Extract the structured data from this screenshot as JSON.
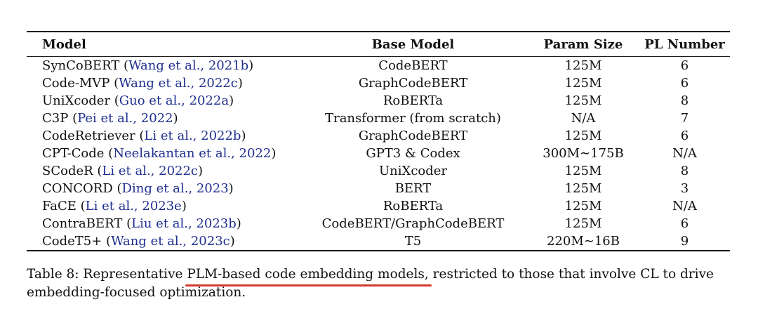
{
  "table": {
    "headers": [
      "Model",
      "Base Model",
      "Param Size",
      "PL Number"
    ],
    "rows": [
      {
        "model": "SynCoBERT",
        "cite": "Wang et al., 2021b",
        "base": "CodeBERT",
        "param": "125M",
        "pl": "6"
      },
      {
        "model": "Code-MVP",
        "cite": "Wang et al., 2022c",
        "base": "GraphCodeBERT",
        "param": "125M",
        "pl": "6"
      },
      {
        "model": "UniXcoder",
        "cite": "Guo et al., 2022a",
        "base": "RoBERTa",
        "param": "125M",
        "pl": "8"
      },
      {
        "model": "C3P",
        "cite": "Pei et al., 2022",
        "base": "Transformer (from scratch)",
        "param": "N/A",
        "pl": "7"
      },
      {
        "model": "CodeRetriever",
        "cite": "Li et al., 2022b",
        "base": "GraphCodeBERT",
        "param": "125M",
        "pl": "6"
      },
      {
        "model": "CPT-Code",
        "cite": "Neelakantan et al., 2022",
        "base": "GPT3 & Codex",
        "param": "300M∼175B",
        "pl": "N/A"
      },
      {
        "model": "SCodeR",
        "cite": "Li et al., 2022c",
        "base": "UniXcoder",
        "param": "125M",
        "pl": "8"
      },
      {
        "model": "CONCORD",
        "cite": "Ding et al., 2023",
        "base": "BERT",
        "param": "125M",
        "pl": "3"
      },
      {
        "model": "FaCE",
        "cite": "Li et al., 2023e",
        "base": "RoBERTa",
        "param": "125M",
        "pl": "N/A"
      },
      {
        "model": "ContraBERT",
        "cite": "Liu et al., 2023b",
        "base": "CodeBERT/GraphCodeBERT",
        "param": "125M",
        "pl": "6"
      },
      {
        "model": "CodeT5+",
        "cite": "Wang et al., 2023c",
        "base": "T5",
        "param": "220M∼16B",
        "pl": "9"
      }
    ]
  },
  "caption": {
    "prefix": "Table 8: Representative ",
    "highlight": "PLM-based code embedding models,",
    "line1_rest": " restricted to those that involve CL to drive",
    "line2": "embedding-focused optimization.",
    "highlight_color": "#d63a2c"
  },
  "colors": {
    "citation": "#1f2f8f",
    "text": "#111111"
  }
}
